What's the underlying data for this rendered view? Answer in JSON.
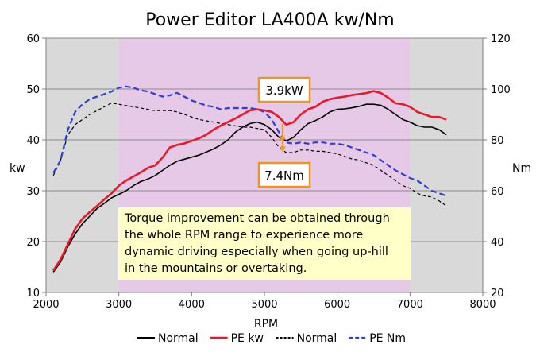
{
  "chart_data": {
    "type": "line",
    "title": "Power Editor LA400A kw/Nm",
    "xlabel": "RPM",
    "ylabel_left": "kw",
    "ylabel_right": "Nm",
    "xlim": [
      2000,
      8000
    ],
    "ylim_left": [
      10,
      60
    ],
    "ylim_right": [
      20,
      120
    ],
    "x_ticks": [
      2000,
      3000,
      4000,
      5000,
      6000,
      7000,
      8000
    ],
    "y_left_ticks": [
      10,
      20,
      30,
      40,
      50,
      60
    ],
    "y_right_ticks": [
      20,
      40,
      60,
      80,
      100,
      120
    ],
    "grid": true,
    "legend_position": "bottom",
    "highlight_band": {
      "x_from": 3000,
      "x_to": 7000,
      "color": "#e6c9e6"
    },
    "outside_band_color": "#d9d9d9",
    "series": [
      {
        "name": "Normal",
        "axis": "left",
        "color": "#000000",
        "dash": "solid",
        "width": 1.6,
        "x": [
          2100,
          2200,
          2300,
          2400,
          2500,
          2600,
          2700,
          2800,
          2900,
          3000,
          3100,
          3200,
          3300,
          3400,
          3500,
          3600,
          3700,
          3800,
          3900,
          4000,
          4100,
          4200,
          4300,
          4400,
          4500,
          4600,
          4700,
          4800,
          4900,
          5000,
          5100,
          5200,
          5300,
          5400,
          5500,
          5600,
          5700,
          5800,
          5900,
          6000,
          6100,
          6200,
          6300,
          6400,
          6500,
          6600,
          6700,
          6800,
          6900,
          7000,
          7100,
          7200,
          7300,
          7400,
          7500
        ],
        "y": [
          14,
          16,
          19,
          21.5,
          23.5,
          25,
          26.5,
          27.5,
          28.6,
          29.3,
          30,
          31,
          31.8,
          32.3,
          33,
          34,
          35,
          35.8,
          36.2,
          36.6,
          37,
          37.6,
          38.2,
          39,
          40,
          41.5,
          42.5,
          43.2,
          43.5,
          43,
          42,
          40.5,
          39.8,
          40.5,
          42,
          43.2,
          43.8,
          44.5,
          45.5,
          46,
          46.1,
          46.3,
          46.6,
          47,
          47,
          46.8,
          46,
          45,
          44,
          43.5,
          42.8,
          42.5,
          42.5,
          42,
          41
        ]
      },
      {
        "name": "PE kw",
        "axis": "left",
        "color": "#e8192c",
        "dash": "solid",
        "width": 2.6,
        "x": [
          2100,
          2200,
          2300,
          2400,
          2500,
          2600,
          2700,
          2800,
          2900,
          3000,
          3100,
          3200,
          3300,
          3400,
          3500,
          3600,
          3700,
          3800,
          3900,
          4000,
          4100,
          4200,
          4300,
          4400,
          4500,
          4600,
          4700,
          4800,
          4900,
          5000,
          5100,
          5200,
          5300,
          5400,
          5500,
          5600,
          5700,
          5800,
          5900,
          6000,
          6100,
          6200,
          6300,
          6400,
          6500,
          6600,
          6700,
          6800,
          6900,
          7000,
          7100,
          7200,
          7300,
          7400,
          7500
        ],
        "y": [
          14.3,
          16.5,
          19.5,
          22.5,
          24.5,
          25.8,
          27,
          28.3,
          29.5,
          31,
          32,
          32.8,
          33.6,
          34.5,
          35,
          36.5,
          38.5,
          39,
          39.3,
          39.8,
          40.3,
          41,
          42,
          42.8,
          43.5,
          44.2,
          45,
          45.8,
          46,
          45.8,
          45.5,
          44.5,
          43,
          43.5,
          45,
          46,
          46.5,
          47.5,
          48,
          48.3,
          48.5,
          48.8,
          49,
          49.2,
          49.6,
          49.2,
          48.3,
          47.2,
          47,
          46.5,
          45.5,
          45,
          44.5,
          44.5,
          44
        ]
      },
      {
        "name": "Normal",
        "axis": "right",
        "color": "#000000",
        "dash": "4,3",
        "width": 1.2,
        "x": [
          2100,
          2200,
          2300,
          2400,
          2500,
          2600,
          2700,
          2800,
          2900,
          3000,
          3100,
          3200,
          3300,
          3400,
          3500,
          3600,
          3700,
          3800,
          3900,
          4000,
          4100,
          4200,
          4300,
          4400,
          4500,
          4600,
          4700,
          4800,
          4900,
          5000,
          5100,
          5200,
          5300,
          5400,
          5500,
          5600,
          5700,
          5800,
          5900,
          6000,
          6100,
          6200,
          6300,
          6400,
          6500,
          6600,
          6700,
          6800,
          6900,
          7000,
          7100,
          7200,
          7300,
          7400,
          7500
        ],
        "y": [
          66,
          72,
          82,
          86,
          88,
          90,
          91.5,
          93,
          94.5,
          94,
          93.5,
          93,
          92.5,
          92,
          91.5,
          91.5,
          91.5,
          91,
          90,
          89,
          88,
          87.5,
          87,
          86.5,
          86,
          85.5,
          85,
          85,
          84.5,
          84,
          81,
          77,
          75,
          75,
          76,
          76,
          75.5,
          75.5,
          75,
          74.5,
          73.5,
          72.5,
          72,
          71,
          70,
          68,
          66,
          64,
          62,
          61,
          59,
          58,
          57.5,
          56,
          54
        ]
      },
      {
        "name": "PE Nm",
        "axis": "right",
        "color": "#2f3fd6",
        "dash": "7,4",
        "width": 2.2,
        "x": [
          2100,
          2200,
          2300,
          2400,
          2500,
          2600,
          2700,
          2800,
          2900,
          3000,
          3100,
          3200,
          3300,
          3400,
          3500,
          3600,
          3700,
          3800,
          3900,
          4000,
          4100,
          4200,
          4300,
          4400,
          4500,
          4600,
          4700,
          4800,
          4900,
          5000,
          5100,
          5200,
          5300,
          5400,
          5500,
          5600,
          5700,
          5800,
          5900,
          6000,
          6100,
          6200,
          6300,
          6400,
          6500,
          6600,
          6700,
          6800,
          6900,
          7000,
          7100,
          7200,
          7300,
          7400,
          7500
        ],
        "y": [
          67,
          72,
          84,
          91,
          94,
          96,
          97,
          98,
          99,
          100.5,
          101,
          100.5,
          99.5,
          99,
          98,
          97,
          97.5,
          98.5,
          97,
          95.5,
          94.5,
          93.5,
          93,
          92,
          92.5,
          92.5,
          92.5,
          92.5,
          92,
          91,
          88,
          83,
          79,
          78.5,
          79,
          78.5,
          79,
          79,
          78.5,
          78.5,
          78,
          77,
          76,
          75,
          74,
          72,
          70,
          68,
          66.5,
          65,
          64,
          62,
          60,
          59,
          58
        ]
      }
    ],
    "annotations": [
      {
        "text": "3.9kW",
        "border_color": "#f0961e"
      },
      {
        "text": "7.4Nm",
        "border_color": "#f0961e"
      }
    ],
    "note": {
      "lines": [
        "Torque improvement can be obtained through",
        "the whole RPM range to experience more",
        "dynamic driving especially when going up-hill",
        "in the mountains or overtaking."
      ],
      "background": "#ffffc8"
    }
  }
}
